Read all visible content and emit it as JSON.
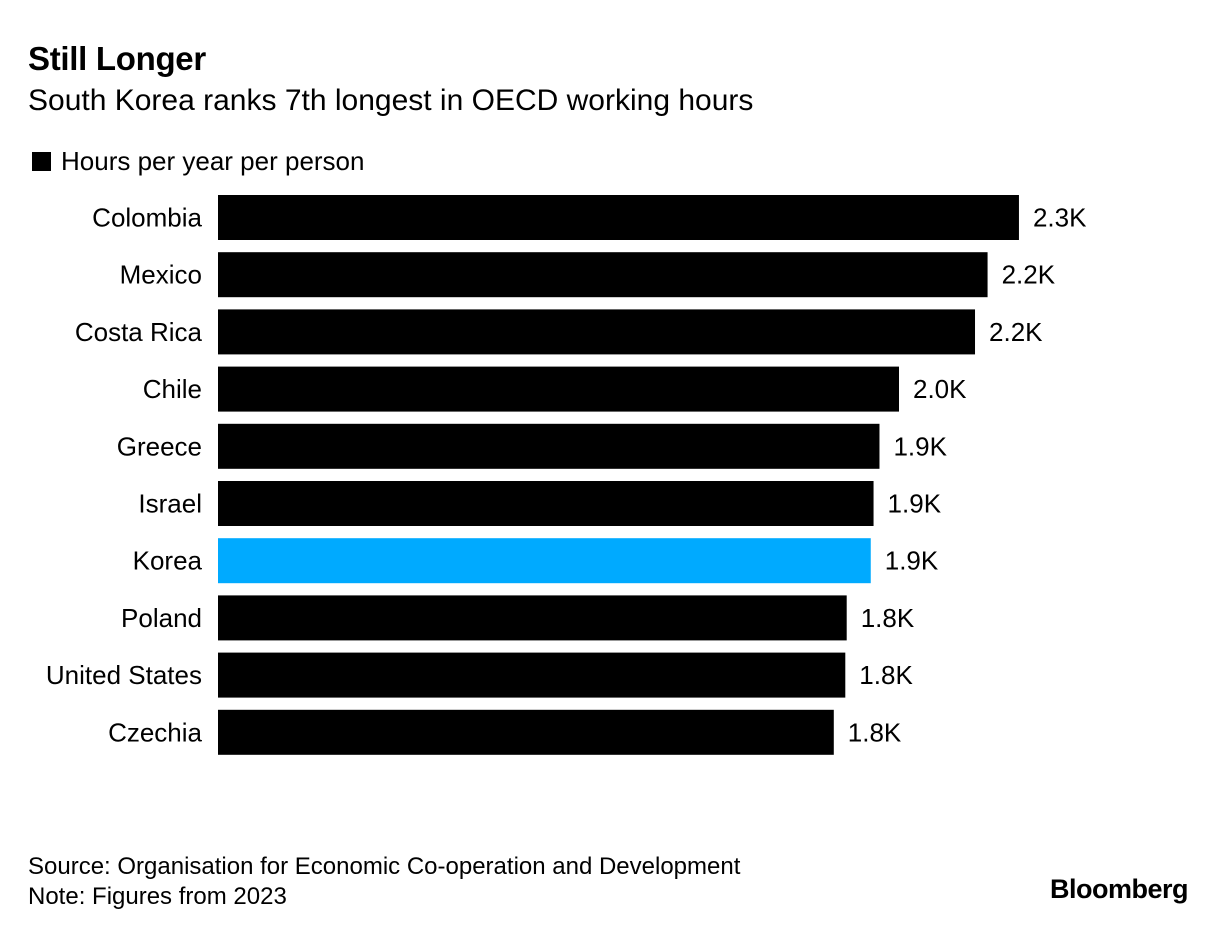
{
  "title": "Still Longer",
  "subtitle": "South Korea ranks 7th longest in OECD working hours",
  "legend": {
    "label": "Hours per year per person"
  },
  "source": "Source: Organisation for Economic Co-operation and Development",
  "note": "Note: Figures from 2023",
  "brand": "Bloomberg",
  "colors": {
    "default_bar": "#000000",
    "highlight_bar": "#00aaff",
    "background": "#ffffff"
  },
  "chart_data": {
    "type": "bar",
    "orientation": "horizontal",
    "title": "Still Longer",
    "subtitle": "South Korea ranks 7th longest in OECD working hours",
    "xlabel": "",
    "ylabel": "",
    "xlim": [
      0,
      2300
    ],
    "grid": false,
    "legend": "top-left",
    "highlight": "Korea",
    "categories": [
      "Colombia",
      "Mexico",
      "Costa Rica",
      "Chile",
      "Greece",
      "Israel",
      "Korea",
      "Poland",
      "United States",
      "Czechia"
    ],
    "series": [
      {
        "name": "Hours per year per person",
        "values": [
          2297,
          2207,
          2171,
          1953,
          1897,
          1880,
          1872,
          1803,
          1799,
          1766
        ],
        "labels": [
          "2.3K",
          "2.2K",
          "2.2K",
          "2.0K",
          "1.9K",
          "1.9K",
          "1.9K",
          "1.8K",
          "1.8K",
          "1.8K"
        ]
      }
    ]
  }
}
